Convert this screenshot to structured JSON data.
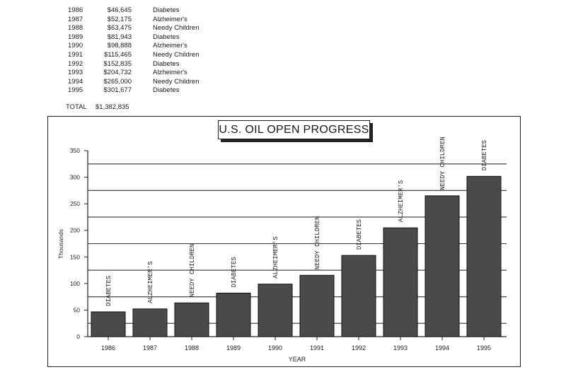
{
  "table": {
    "rows": [
      {
        "year": "1986",
        "amount": "$46,645",
        "cause": "Diabetes"
      },
      {
        "year": "1987",
        "amount": "$52,175",
        "cause": "Alzheimer's"
      },
      {
        "year": "1988",
        "amount": "$63,475",
        "cause": "Needy Children"
      },
      {
        "year": "1989",
        "amount": "$81,943",
        "cause": "Diabetes"
      },
      {
        "year": "1990",
        "amount": "$98,888",
        "cause": "Alzheimer's"
      },
      {
        "year": "1991",
        "amount": "$115,465",
        "cause": "Needy Children"
      },
      {
        "year": "1992",
        "amount": "$152,835",
        "cause": "Diabetes"
      },
      {
        "year": "1993",
        "amount": "$204,732",
        "cause": "Alzheimer's"
      },
      {
        "year": "1994",
        "amount": "$265,000",
        "cause": "Needy Children"
      },
      {
        "year": "1995",
        "amount": "$301,677",
        "cause": "Diabetes"
      }
    ],
    "total_label": "TOTAL",
    "total_value": "$1,382,835"
  },
  "chart_data": {
    "type": "bar",
    "title": "U.S. OIL OPEN PROGRESS",
    "xlabel": "YEAR",
    "ylabel": "Thousands",
    "ylim": [
      0,
      350
    ],
    "yticks": [
      0,
      50,
      100,
      150,
      200,
      250,
      300,
      350
    ],
    "categories": [
      "1986",
      "1987",
      "1988",
      "1989",
      "1990",
      "1991",
      "1992",
      "1993",
      "1994",
      "1995"
    ],
    "values": [
      46.645,
      52.175,
      63.475,
      81.943,
      98.888,
      115.465,
      152.835,
      204.732,
      265.0,
      301.677
    ],
    "bar_labels": [
      "DIABETES",
      "ALZHEIMER'S",
      "NEEDY CHILDREN",
      "DIABETES",
      "ALZHEIMER'S",
      "NEEDY CHILDREN",
      "DIABETES",
      "ALZHEIMER'S",
      "NEEDY CHILDREN",
      "DIABETES"
    ],
    "gridlines": [
      25,
      75,
      125,
      175,
      225,
      275,
      325
    ],
    "bar_color": "#4a4a4a"
  }
}
